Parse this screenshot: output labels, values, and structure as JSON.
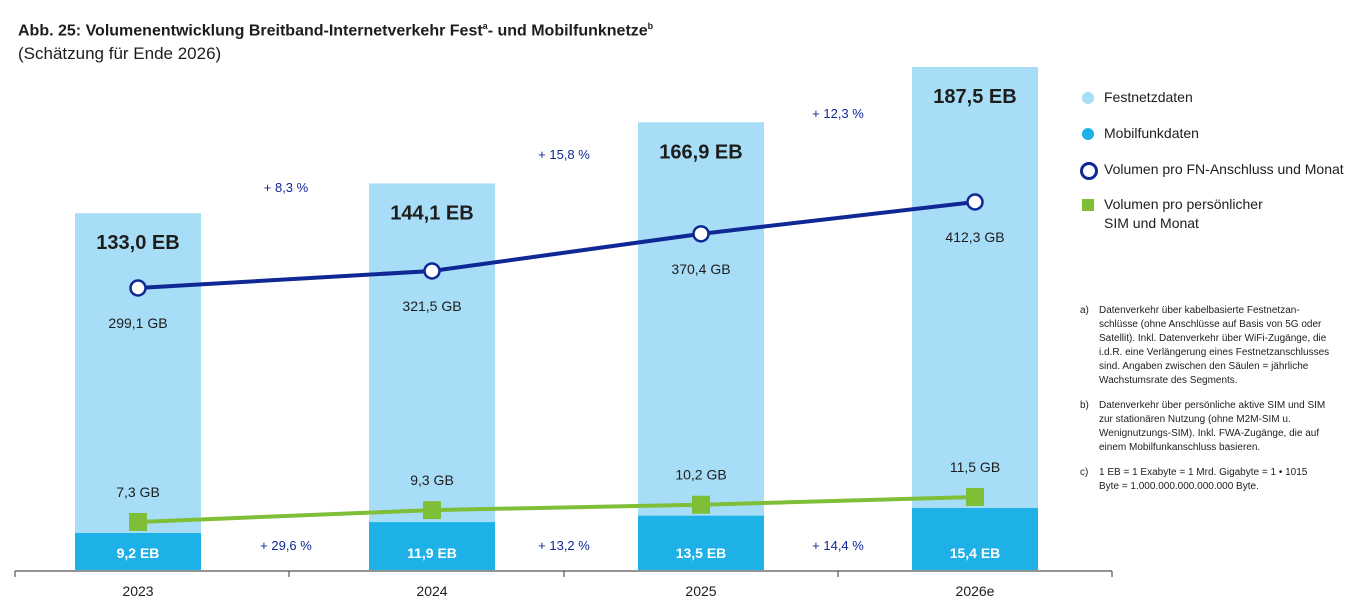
{
  "title": {
    "main": "Abb. 25: Volumenentwicklung Breitband-Internetverkehr Fest",
    "sup_a": "a",
    "middle": "- und Mobilfunknetze",
    "sup_b": "b",
    "subtitle": "(Schätzung für Ende 2026)"
  },
  "colors": {
    "festnetz": "#a8ddf8",
    "mobilfunk": "#1eb1e8",
    "fn_line": "#0f2894",
    "sim_line": "#7fbe37",
    "growth_text": "#0f2894"
  },
  "chart_data": {
    "type": "bar",
    "categories": [
      "2023",
      "2024",
      "2025",
      "2026e"
    ],
    "series": [
      {
        "name": "Festnetzdaten",
        "unit": "EB",
        "values": [
          133.0,
          144.1,
          166.9,
          187.5
        ],
        "labels": [
          "133,0 EB",
          "144,1 EB",
          "166,9 EB",
          "187,5 EB"
        ]
      },
      {
        "name": "Mobilfunkdaten",
        "unit": "EB",
        "values": [
          9.2,
          11.9,
          13.5,
          15.4
        ],
        "labels": [
          "9,2 EB",
          "11,9 EB",
          "13,5 EB",
          "15,4 EB"
        ]
      },
      {
        "name": "Volumen pro FN-Anschluss und Monat",
        "type": "line",
        "unit": "GB",
        "values": [
          299.1,
          321.5,
          370.4,
          412.3
        ],
        "labels": [
          "299,1 GB",
          "321,5 GB",
          "370,4 GB",
          "412,3 GB"
        ]
      },
      {
        "name": "Volumen pro persönlicher SIM und Monat",
        "type": "line",
        "unit": "GB",
        "values": [
          7.3,
          9.3,
          10.2,
          11.5
        ],
        "labels": [
          "7,3 GB",
          "9,3 GB",
          "10,2 GB",
          "11,5 GB"
        ]
      }
    ],
    "growth_festnetz": [
      "+ 8,3 %",
      "+ 15,8 %",
      "+ 12,3 %"
    ],
    "growth_mobilfunk": [
      "+ 29,6 %",
      "+ 13,2 %",
      "+ 14,4 %"
    ],
    "legend_position": "right"
  },
  "legend": {
    "items": [
      {
        "label": "Festnetzdaten"
      },
      {
        "label": "Mobilfunkdaten"
      },
      {
        "label": "Volumen pro FN-Anschluss und Monat"
      },
      {
        "label": "Volumen pro persönlicher SIM und Monat"
      }
    ]
  },
  "notes": [
    {
      "key": "a)",
      "text": "Datenverkehr über kabelbasierte Festnetzan-schlüsse (ohne Anschlüsse auf Basis von 5G oder Satellit). Inkl. Datenverkehr über WiFi-Zugänge, die i.d.R. eine Verlängerung eines Festnetzanschlusses sind. Angaben zwischen den Säulen = jährliche Wachstumsrate des Segments."
    },
    {
      "key": "b)",
      "text": "Datenverkehr über persönliche aktive SIM und SIM zur stationären Nutzung (ohne M2M-SIM u. Wenignutzungs-SIM). Inkl. FWA-Zugänge, die auf einem Mobilfunkanschluss basieren."
    },
    {
      "key": "c)",
      "text": "1 EB = 1 Exabyte = 1 Mrd. Gigabyte = 1 • 1015 Byte = 1.000.000.000.000.000 Byte."
    }
  ]
}
